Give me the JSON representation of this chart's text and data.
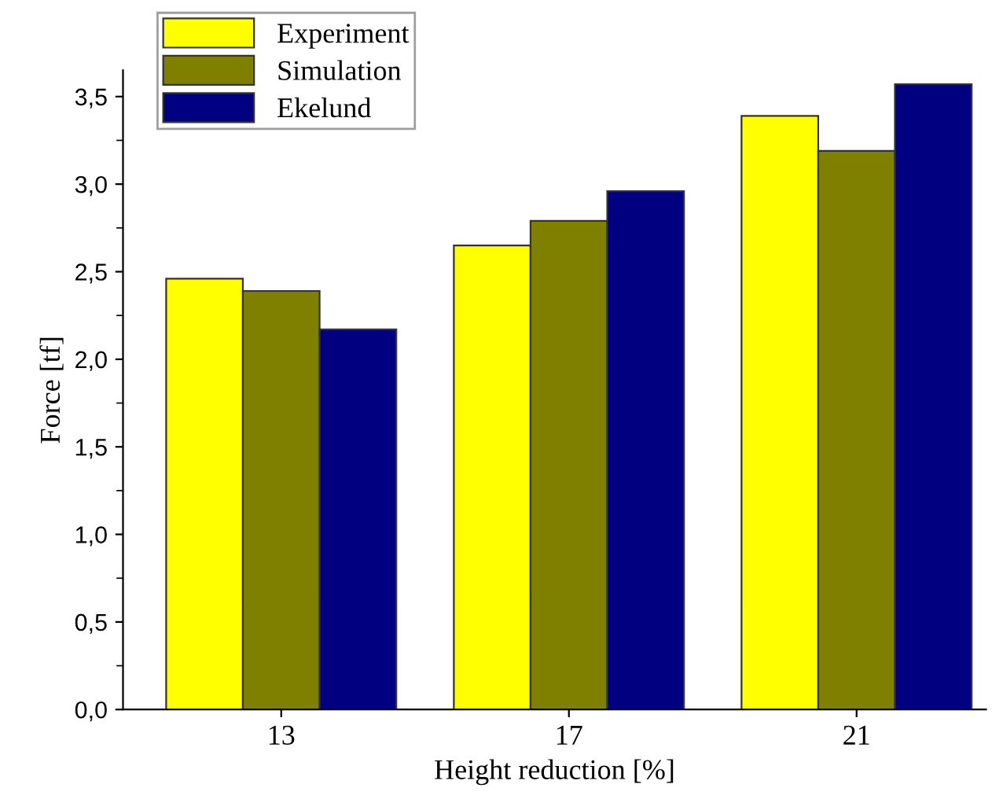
{
  "chart_data": {
    "type": "bar",
    "xlabel": "Height reduction [%]",
    "ylabel": "Force [tf]",
    "categories": [
      "13",
      "17",
      "21"
    ],
    "series": [
      {
        "name": "Experiment",
        "color": "#ffff00",
        "values": [
          2.46,
          2.65,
          3.39
        ]
      },
      {
        "name": "Simulation",
        "color": "#808000",
        "values": [
          2.39,
          2.79,
          3.19
        ]
      },
      {
        "name": "Ekelund",
        "color": "#000080",
        "values": [
          2.17,
          2.96,
          3.57
        ]
      }
    ],
    "ylim": [
      0,
      3.65
    ],
    "yticks": [
      {
        "value": 0,
        "label": "0,0"
      },
      {
        "value": 0.5,
        "label": "0,5"
      },
      {
        "value": 1.0,
        "label": "1,0"
      },
      {
        "value": 1.5,
        "label": "1,5"
      },
      {
        "value": 2.0,
        "label": "2,0"
      },
      {
        "value": 2.5,
        "label": "2,5"
      },
      {
        "value": 3.0,
        "label": "3,0"
      },
      {
        "value": 3.5,
        "label": "3,5"
      }
    ],
    "grid": false,
    "legend": "top left"
  }
}
